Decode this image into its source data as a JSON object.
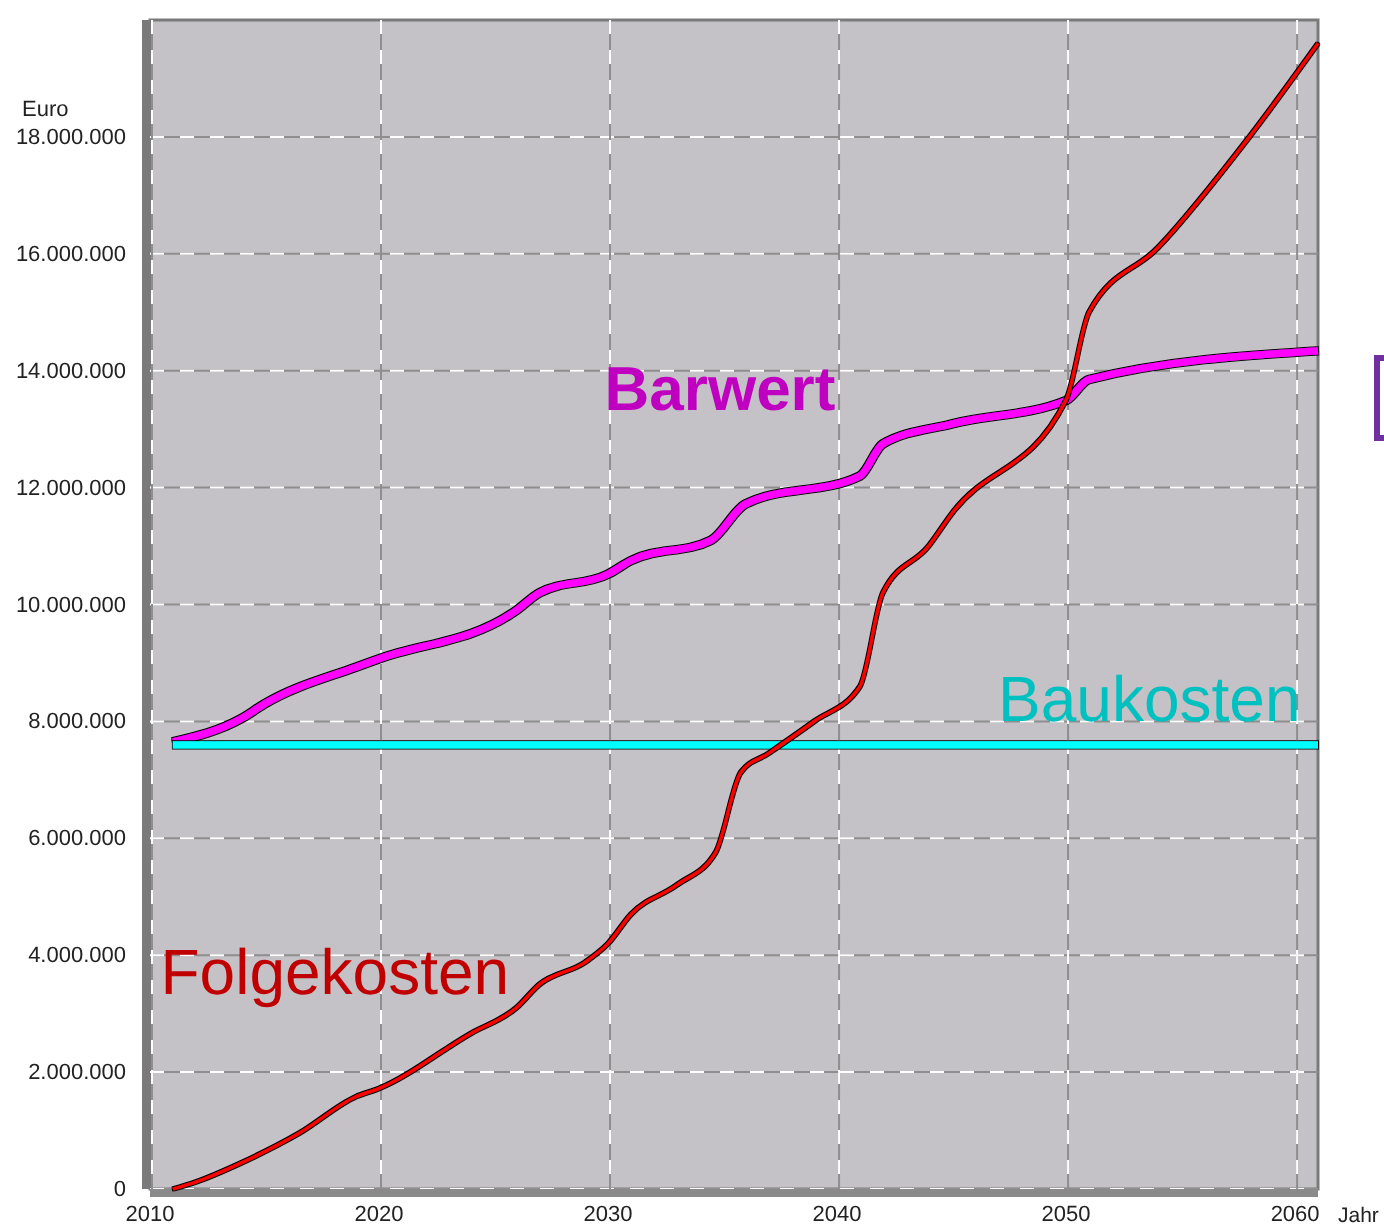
{
  "chart_data": {
    "type": "line",
    "xlabel": "Jahr",
    "ylabel": "Euro",
    "xlim": [
      2010,
      2061
    ],
    "xticks": [
      2010,
      2020,
      2030,
      2040,
      2050,
      2060
    ],
    "ylim": [
      0,
      20000000
    ],
    "yticks": [
      0,
      {
        "value": 2000000,
        "label": "2.000.000"
      },
      {
        "value": 4000000,
        "label": "4.000.000"
      },
      {
        "value": 6000000,
        "label": "6.000.000"
      },
      {
        "value": 8000000,
        "label": "8.000.000"
      },
      {
        "value": 10000000,
        "label": "10.000.000"
      },
      {
        "value": 12000000,
        "label": "12.000.000"
      },
      {
        "value": 14000000,
        "label": "14.000.000"
      },
      {
        "value": 16000000,
        "label": "16.000.000"
      },
      {
        "value": 18000000,
        "label": "18.000.000"
      }
    ],
    "grid": true,
    "series": [
      {
        "name": "Barwert",
        "color": "#ff00ff",
        "x": [
          2011,
          2014,
          2015,
          2019,
          2020,
          2026,
          2027,
          2030,
          2031,
          2034.5,
          2036,
          2041,
          2042,
          2045,
          2050,
          2051,
          2061
        ],
        "values": [
          7650000,
          8050000,
          8300000,
          8930000,
          9070000,
          9900000,
          10200000,
          10520000,
          10750000,
          11100000,
          11720000,
          12200000,
          12750000,
          13090000,
          13490000,
          13850000,
          14340000
        ]
      },
      {
        "name": "Baukosten",
        "color": "#00ffff",
        "x": [
          2011,
          2061
        ],
        "values": [
          7600000,
          7600000
        ]
      },
      {
        "name": "Folgekosten",
        "color": "#ff0000",
        "x": [
          2011,
          2012,
          2014,
          2016.5,
          2019,
          2020,
          2024,
          2026,
          2027,
          2029,
          2030,
          2031,
          2033,
          2034.7,
          2035.8,
          2037,
          2039,
          2041,
          2042,
          2044,
          2045,
          2050,
          2051,
          2054,
          2058,
          2061
        ],
        "values": [
          0,
          120000,
          450000,
          950000,
          1580000,
          1720000,
          2660000,
          3100000,
          3500000,
          3880000,
          4200000,
          4700000,
          5200000,
          5760000,
          7130000,
          7450000,
          8000000,
          8600000,
          10200000,
          11000000,
          11550000,
          13500000,
          15000000,
          16100000,
          18000000,
          19600000
        ]
      }
    ]
  }
}
